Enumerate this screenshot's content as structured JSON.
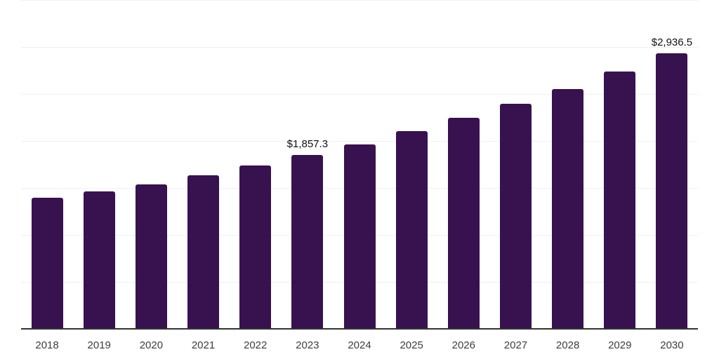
{
  "chart_data": {
    "type": "bar",
    "title": "",
    "xlabel": "",
    "ylabel": "",
    "categories": [
      "2018",
      "2019",
      "2020",
      "2021",
      "2022",
      "2023",
      "2024",
      "2025",
      "2026",
      "2027",
      "2028",
      "2029",
      "2030"
    ],
    "values": [
      1402.0,
      1469.0,
      1544.0,
      1641.0,
      1745.0,
      1857.3,
      1971.0,
      2113.0,
      2250.0,
      2399.0,
      2560.0,
      2742.0,
      2936.5
    ],
    "data_labels": [
      {
        "category": "2023",
        "text": "$1,857.3"
      },
      {
        "category": "2030",
        "text": "$2,936.5"
      }
    ],
    "ylim": [
      0,
      3500
    ],
    "gridline_step": 500,
    "grid": "horizontal",
    "legend_position": "none",
    "y_axis_labels_visible": false,
    "colors": {
      "bar": "#38114F",
      "gridline": "#f0f0f0",
      "axis_line": "#333333",
      "tick_label": "#3d3d3d",
      "data_label": "#111111",
      "background": "#ffffff"
    }
  }
}
